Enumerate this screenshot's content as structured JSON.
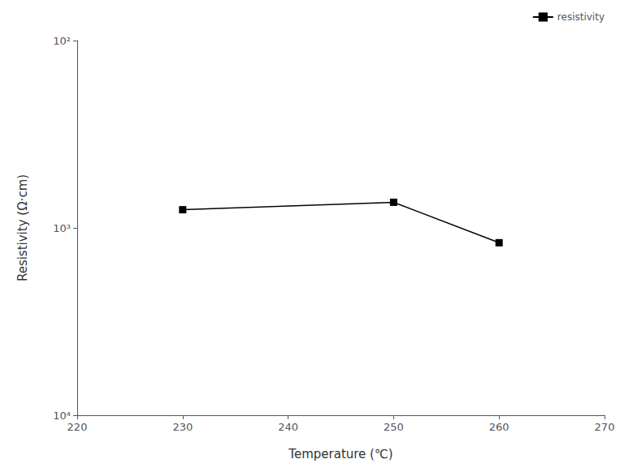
{
  "chart_data": {
    "type": "line",
    "x": [
      230,
      250,
      260
    ],
    "series": [
      {
        "name": "resistivity",
        "color": "#000000",
        "marker": "square",
        "line_style": "solid",
        "values": [
          800,
          730,
          1200
        ]
      }
    ],
    "xlabel": "Temperature (℃)",
    "ylabel": "Resistivity (Ω·cm)",
    "xlim": [
      220,
      270
    ],
    "xticks": [
      220,
      230,
      240,
      250,
      260,
      270
    ],
    "ylim": [
      10000,
      100
    ],
    "yticks": [
      {
        "value": 100,
        "label": "10²"
      },
      {
        "value": 1000,
        "label": "10³"
      },
      {
        "value": 10000,
        "label": "10⁴"
      }
    ],
    "log": "y",
    "legend": "upper right",
    "grid": false
  }
}
